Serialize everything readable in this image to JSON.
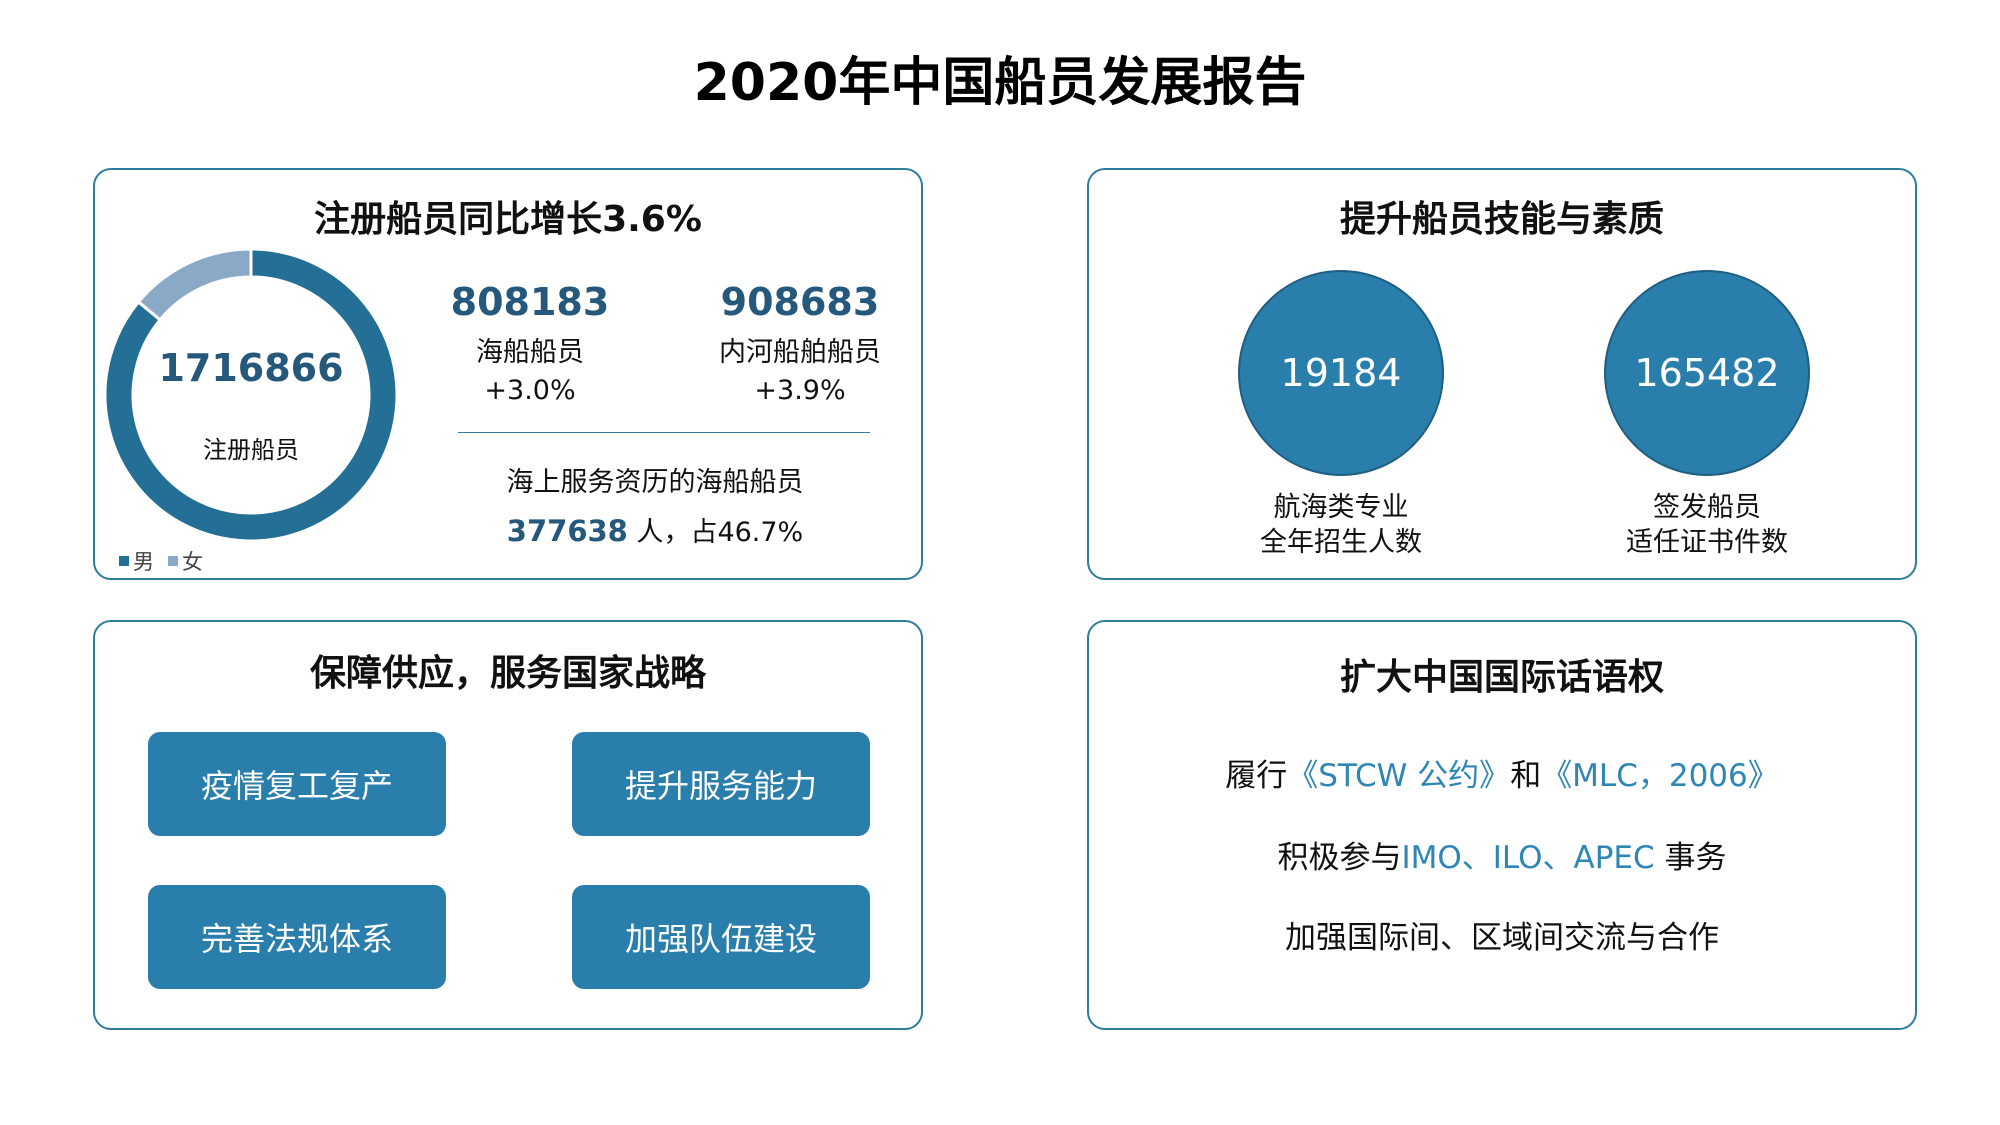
{
  "title": "2020年中国船员发展报告",
  "colors": {
    "primary": "#2a7eab",
    "dark_number": "#25587a",
    "male": "#246f96",
    "female": "#8aa9c6",
    "border": "#2f7d9e",
    "highlight": "#2e86b5"
  },
  "registered": {
    "title": "注册船员同比增长3.6%",
    "total_value": "1716866",
    "total_label": "注册船员",
    "chart_data": {
      "type": "pie",
      "categories": [
        "男",
        "女"
      ],
      "values": [
        0.86,
        0.14
      ]
    },
    "legend": [
      "男",
      "女"
    ],
    "sea": {
      "value": "808183",
      "label": "海船船员",
      "pct": "+3.0%"
    },
    "river": {
      "value": "908683",
      "label": "内河船舶船员",
      "pct": "+3.9%"
    },
    "sea_service": {
      "label": "海上服务资历的海船船员",
      "value": "377638",
      "suffix": " 人，占46.7%"
    }
  },
  "skills": {
    "title": "提升船员技能与素质",
    "items": [
      {
        "value": "19184",
        "label_line1": "航海类专业",
        "label_line2": "全年招生人数"
      },
      {
        "value": "165482",
        "label_line1": "签发船员",
        "label_line2": "适任证书件数"
      }
    ]
  },
  "supply": {
    "title": "保障供应，服务国家战略",
    "buttons": [
      "疫情复工复产",
      "提升服务能力",
      "完善法规体系",
      "加强队伍建设"
    ]
  },
  "intl": {
    "title": "扩大中国国际话语权",
    "line1": {
      "a": "履行",
      "b": "《STCW 公约》",
      "c": "和",
      "d": "《MLC，2006》"
    },
    "line2": {
      "a": "积极参与",
      "b": "IMO、ILO、APEC",
      "c": " 事务"
    },
    "line3": "加强国际间、区域间交流与合作"
  }
}
